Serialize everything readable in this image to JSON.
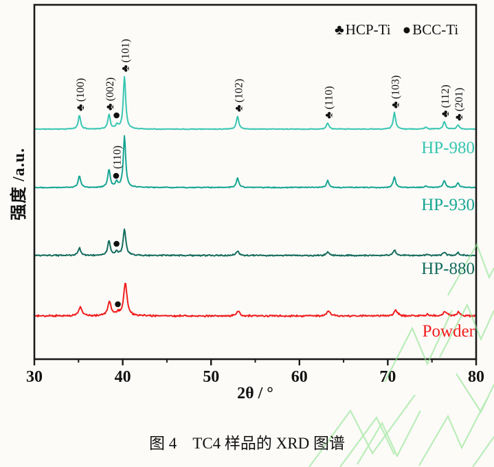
{
  "page": {
    "caption": "图 4　TC4 样品的 XRD 图谱"
  },
  "chart_data": {
    "type": "line",
    "chart_kind": "XRD diffraction pattern, stacked traces",
    "xlabel": "2θ / °",
    "ylabel": "强度 /a.u.",
    "xlim": [
      30,
      80
    ],
    "x_major_ticks": [
      30,
      40,
      50,
      60,
      70,
      80
    ],
    "x_minor_ticks": [
      35,
      45,
      55,
      65,
      75
    ],
    "grid": false,
    "legend_position": "top-right inside",
    "legend": [
      {
        "symbol": "♣",
        "label": "HCP-Ti"
      },
      {
        "symbol": "●",
        "label": "BCC-Ti"
      }
    ],
    "marker_symbol": "♣",
    "hcp_peak_labels": [
      {
        "hkl": "(100)",
        "x": 35.1
      },
      {
        "hkl": "(002)",
        "x": 38.45
      },
      {
        "hkl": "(101)",
        "x": 40.2
      },
      {
        "hkl": "(102)",
        "x": 53.0
      },
      {
        "hkl": "(110)",
        "x": 63.2
      },
      {
        "hkl": "(103)",
        "x": 70.75
      },
      {
        "hkl": "(112)",
        "x": 76.4
      },
      {
        "hkl": "(201)",
        "x": 77.95
      }
    ],
    "bcc_markers": [
      {
        "series": "HP-980",
        "x": 39.3,
        "rise": 20,
        "label": ""
      },
      {
        "series": "HP-930",
        "x": 39.25,
        "rise": 17,
        "label": "(110)"
      },
      {
        "series": "HP-880",
        "x": 39.3,
        "rise": 17,
        "label": ""
      },
      {
        "series": "Powder",
        "x": 39.45,
        "rise": 17,
        "label": ""
      }
    ],
    "series": [
      {
        "name": "HP-980",
        "color": "#38c6b1",
        "baseline": 188,
        "noise": 0.7,
        "seed": 11,
        "peak_width": 0.16,
        "peaks": [
          [
            35.1,
            20
          ],
          [
            38.45,
            21
          ],
          [
            39.35,
            6
          ],
          [
            40.2,
            77
          ],
          [
            53.0,
            19
          ],
          [
            63.2,
            9
          ],
          [
            70.75,
            24
          ],
          [
            74.3,
            3
          ],
          [
            76.4,
            11
          ],
          [
            77.95,
            6
          ]
        ]
      },
      {
        "name": "HP-930",
        "color": "#17a593",
        "baseline": 273,
        "noise": 0.9,
        "seed": 22,
        "peak_width": 0.16,
        "peaks": [
          [
            35.1,
            17
          ],
          [
            38.45,
            26
          ],
          [
            39.3,
            8
          ],
          [
            40.2,
            75
          ],
          [
            53.0,
            14
          ],
          [
            63.2,
            10
          ],
          [
            70.75,
            16
          ],
          [
            74.3,
            2
          ],
          [
            76.4,
            10
          ],
          [
            77.95,
            7
          ]
        ]
      },
      {
        "name": "HP-880",
        "color": "#156c5e",
        "baseline": 372,
        "noise": 1.2,
        "seed": 33,
        "peak_width": 0.18,
        "peaks": [
          [
            35.1,
            11
          ],
          [
            38.45,
            21
          ],
          [
            39.3,
            5
          ],
          [
            40.2,
            38
          ],
          [
            53.0,
            7
          ],
          [
            63.2,
            5
          ],
          [
            70.75,
            8
          ],
          [
            74.5,
            1.5
          ],
          [
            76.4,
            5
          ],
          [
            77.95,
            4
          ]
        ]
      },
      {
        "name": "Powder",
        "color": "#f01d1d",
        "baseline": 460,
        "noise": 1.6,
        "seed": 44,
        "peak_width": 0.22,
        "peaks": [
          [
            35.2,
            13
          ],
          [
            38.5,
            21
          ],
          [
            39.45,
            4
          ],
          [
            40.3,
            48
          ],
          [
            53.1,
            7
          ],
          [
            63.3,
            7
          ],
          [
            70.9,
            9
          ],
          [
            74.5,
            2
          ],
          [
            76.5,
            7
          ],
          [
            78.0,
            5
          ]
        ]
      }
    ]
  }
}
